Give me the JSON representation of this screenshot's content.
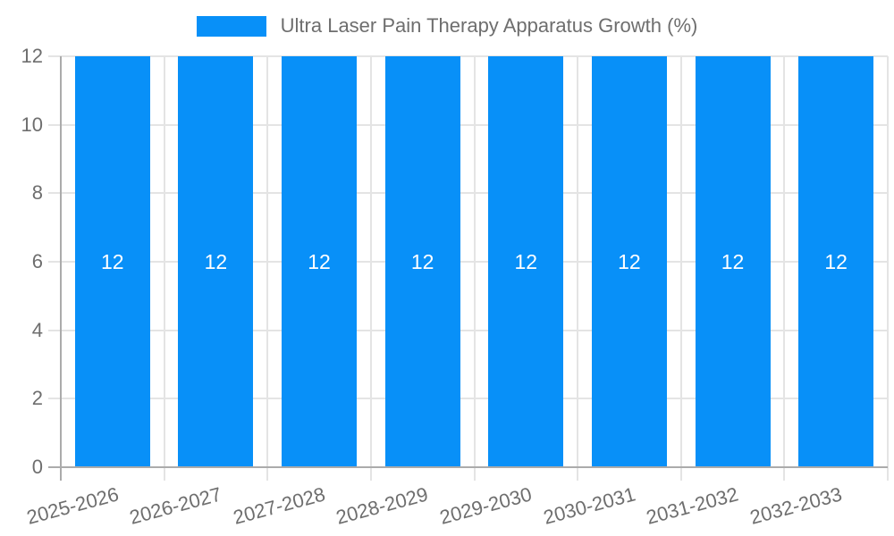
{
  "chart_data": {
    "type": "bar",
    "title": "Ultra Laser Pain Therapy Apparatus Growth (%)",
    "legend": {
      "label": "Ultra Laser Pain Therapy Apparatus Growth (%)",
      "position": "top"
    },
    "categories": [
      "2025-2026",
      "2026-2027",
      "2027-2028",
      "2028-2029",
      "2029-2030",
      "2030-2031",
      "2031-2032",
      "2032-2033"
    ],
    "values": [
      12,
      12,
      12,
      12,
      12,
      12,
      12,
      12
    ],
    "value_labels": [
      "12",
      "12",
      "12",
      "12",
      "12",
      "12",
      "12",
      "12"
    ],
    "ytick_labels": [
      "0",
      "2",
      "4",
      "6",
      "8",
      "10",
      "12"
    ],
    "yticks": [
      0,
      2,
      4,
      6,
      8,
      10,
      12
    ],
    "ylim": [
      0,
      12
    ],
    "xlabel": "",
    "ylabel": "",
    "grid": true,
    "legend_position": "top",
    "colors": {
      "bar": "#0890f8",
      "value_label": "#ffffff",
      "axis_text": "#6e6e6e",
      "grid": "#e4e4e4",
      "axis_line": "#ababab",
      "background": "#ffffff"
    }
  }
}
